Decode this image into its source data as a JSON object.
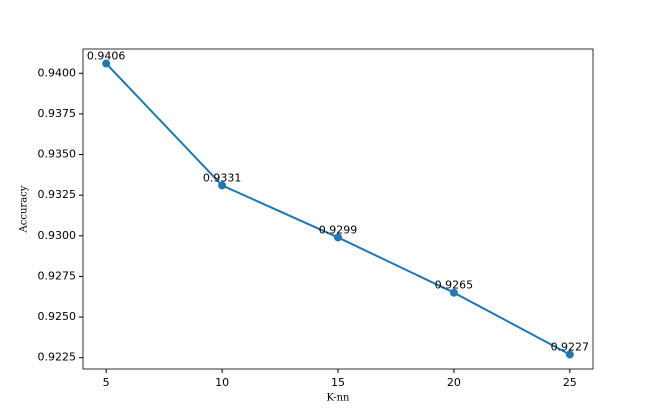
{
  "chart_data": {
    "type": "line",
    "x_label": "K-nn",
    "y_label": "Accuracy",
    "x": [
      5,
      10,
      15,
      20,
      25
    ],
    "series": [
      {
        "color": "#1f77b4",
        "values": [
          0.9406,
          0.9331,
          0.9299,
          0.9265,
          0.9227
        ]
      }
    ],
    "xlim": [
      4,
      26
    ],
    "xticks": [
      5,
      10,
      15,
      20,
      25
    ],
    "ylim": [
      0.921805,
      0.941495
    ],
    "yticks": [
      {
        "value": 0.9225,
        "label": "0.9225"
      },
      {
        "value": 0.925,
        "label": "0.9250"
      },
      {
        "value": 0.9275,
        "label": "0.9275"
      },
      {
        "value": 0.93,
        "label": "0.9300"
      },
      {
        "value": 0.9325,
        "label": "0.9325"
      },
      {
        "value": 0.935,
        "label": "0.9350"
      },
      {
        "value": 0.9375,
        "label": "0.9375"
      },
      {
        "value": 0.94,
        "label": "0.9400"
      }
    ],
    "grid": false
  }
}
